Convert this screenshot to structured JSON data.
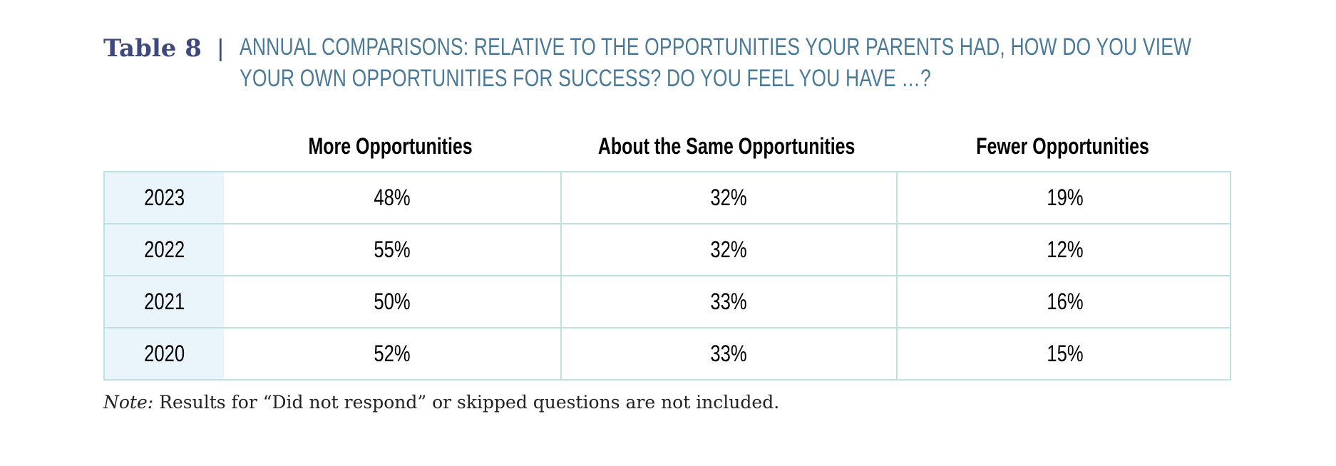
{
  "header": {
    "table_label": "Table 8",
    "divider": "|",
    "title_line1": "ANNUAL COMPARISONS: RELATIVE TO THE OPPORTUNITIES YOUR PARENTS HAD, HOW DO YOU VIEW",
    "title_line2": "YOUR OWN OPPORTUNITIES FOR SUCCESS? DO YOU FEEL YOU HAVE …?"
  },
  "table": {
    "columns": [
      "More Opportunities",
      "About the Same Opportunities",
      "Fewer Opportunities"
    ],
    "rows": [
      {
        "year": "2023",
        "values": [
          "48%",
          "32%",
          "19%"
        ]
      },
      {
        "year": "2022",
        "values": [
          "55%",
          "32%",
          "12%"
        ]
      },
      {
        "year": "2021",
        "values": [
          "50%",
          "33%",
          "16%"
        ]
      },
      {
        "year": "2020",
        "values": [
          "52%",
          "33%",
          "15%"
        ]
      }
    ]
  },
  "note": {
    "label": "Note:",
    "text": " Results for “Did not respond” or skipped questions are not included."
  },
  "colors": {
    "label": "#3f4a7c",
    "title": "#4a7a98",
    "border": "#bde0e0",
    "year_bg": "#eaf4fb"
  }
}
